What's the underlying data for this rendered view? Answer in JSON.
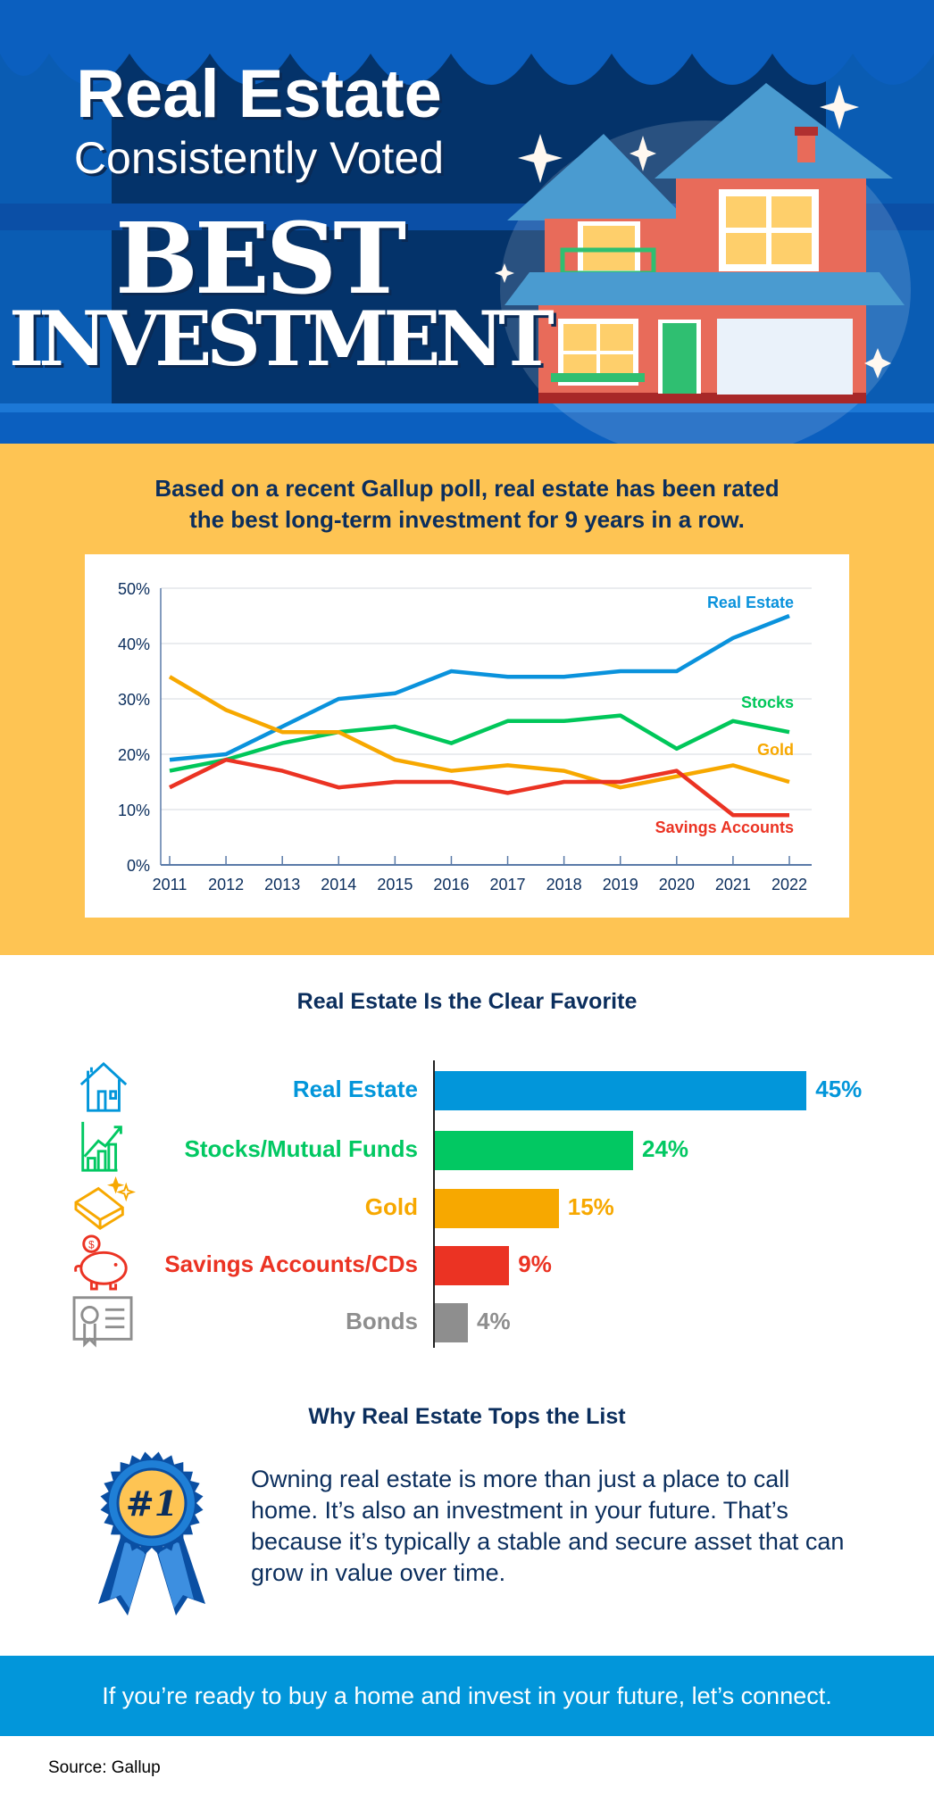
{
  "header": {
    "line1": "Real Estate",
    "line2": "Consistently Voted",
    "line3": "BEST",
    "line4": "INVESTMENT"
  },
  "intro": {
    "line1": "Based on a recent Gallup poll, real estate has been rated",
    "line2": "the best long-term investment for 9 years in a row."
  },
  "chart_data": [
    {
      "type": "line",
      "x": [
        2011,
        2012,
        2013,
        2014,
        2015,
        2016,
        2017,
        2018,
        2019,
        2020,
        2021,
        2022
      ],
      "ylim": [
        0,
        50
      ],
      "yticks": [
        "0%",
        "10%",
        "20%",
        "30%",
        "40%",
        "50%"
      ],
      "grid": true,
      "legend": "inline-right",
      "series": [
        {
          "name": "Real Estate",
          "color": "#0a92dc",
          "values": [
            19,
            20,
            25,
            30,
            31,
            35,
            34,
            34,
            35,
            35,
            41,
            45
          ]
        },
        {
          "name": "Stocks",
          "color": "#00c75a",
          "values": [
            17,
            19,
            22,
            24,
            25,
            22,
            26,
            26,
            27,
            21,
            26,
            24
          ]
        },
        {
          "name": "Gold",
          "color": "#f7a800",
          "values": [
            34,
            28,
            24,
            24,
            19,
            17,
            18,
            17,
            14,
            16,
            18,
            15
          ]
        },
        {
          "name": "Savings Accounts",
          "color": "#eb3323",
          "values": [
            14,
            19,
            17,
            14,
            15,
            15,
            13,
            15,
            15,
            17,
            9,
            9
          ]
        }
      ]
    },
    {
      "type": "bar",
      "title": "Real Estate Is the Clear Favorite",
      "orientation": "horizontal",
      "categories": [
        "Real Estate",
        "Stocks/Mutual Funds",
        "Gold",
        "Savings Accounts/CDs",
        "Bonds"
      ],
      "values": [
        45,
        24,
        15,
        9,
        4
      ],
      "labels": [
        "45%",
        "24%",
        "15%",
        "9%",
        "4%"
      ],
      "colors": [
        "#0296da",
        "#02c862",
        "#f7a800",
        "#eb3323",
        "#8e8e8e"
      ],
      "icons": [
        "house-icon",
        "growth-chart-icon",
        "gold-bar-icon",
        "piggy-bank-icon",
        "bond-certificate-icon"
      ]
    }
  ],
  "why": {
    "title": "Why Real Estate Tops the List",
    "badge": "#1",
    "text": "Owning real estate is more than just a place to call home. It’s also an investment in your future. That’s because it’s typically a stable and secure asset that can grow in value over time."
  },
  "cta": "If you’re ready to buy a home and invest in your future, let’s connect.",
  "source": "Source: Gallup"
}
